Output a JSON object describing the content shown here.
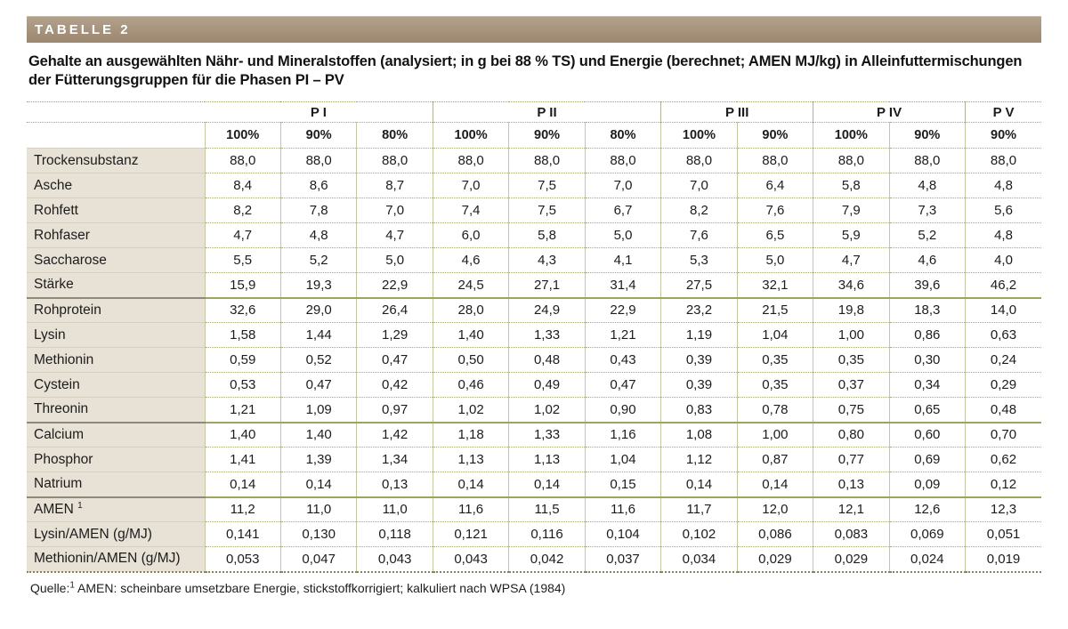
{
  "header": {
    "tag": "TABELLE 2"
  },
  "title": {
    "line1": "Gehalte an ausgewählten Nähr- und Mineralstoffen (analysiert; in g bei 88 % TS) und Energie (berechnet; AMEN MJ/kg) in Alleinfuttermischungen",
    "line2": "der Fütterungsgruppen für die Phasen PI – PV"
  },
  "colors": {
    "tag_bar_top": "#b2a18c",
    "tag_bar_bottom": "#9c8770",
    "label_cell_bg": "#e8e2d6",
    "grid_line": "#c3c8a0",
    "group_separator": "#9ea45f"
  },
  "table": {
    "groups": [
      {
        "label": "P I",
        "cols": [
          "100%",
          "90%",
          "80%"
        ]
      },
      {
        "label": "P II",
        "cols": [
          "100%",
          "90%",
          "80%"
        ]
      },
      {
        "label": "P III",
        "cols": [
          "100%",
          "90%"
        ]
      },
      {
        "label": "P IV",
        "cols": [
          "100%",
          "90%"
        ]
      },
      {
        "label": "P V",
        "cols": [
          "90%"
        ]
      }
    ],
    "rows": [
      {
        "label": "Trockensubstanz",
        "values": [
          "88,0",
          "88,0",
          "88,0",
          "88,0",
          "88,0",
          "88,0",
          "88,0",
          "88,0",
          "88,0",
          "88,0",
          "88,0"
        ]
      },
      {
        "label": "Asche",
        "values": [
          "8,4",
          "8,6",
          "8,7",
          "7,0",
          "7,5",
          "7,0",
          "7,0",
          "6,4",
          "5,8",
          "4,8",
          "4,8"
        ]
      },
      {
        "label": "Rohfett",
        "values": [
          "8,2",
          "7,8",
          "7,0",
          "7,4",
          "7,5",
          "6,7",
          "8,2",
          "7,6",
          "7,9",
          "7,3",
          "5,6"
        ]
      },
      {
        "label": "Rohfaser",
        "values": [
          "4,7",
          "4,8",
          "4,7",
          "6,0",
          "5,8",
          "5,0",
          "7,6",
          "6,5",
          "5,9",
          "5,2",
          "4,8"
        ]
      },
      {
        "label": "Saccharose",
        "values": [
          "5,5",
          "5,2",
          "5,0",
          "4,6",
          "4,3",
          "4,1",
          "5,3",
          "5,0",
          "4,7",
          "4,6",
          "4,0"
        ]
      },
      {
        "label": "Stärke",
        "values": [
          "15,9",
          "19,3",
          "22,9",
          "24,5",
          "27,1",
          "31,4",
          "27,5",
          "32,1",
          "34,6",
          "39,6",
          "46,2"
        ],
        "group_end": true
      },
      {
        "label": "Rohprotein",
        "values": [
          "32,6",
          "29,0",
          "26,4",
          "28,0",
          "24,9",
          "22,9",
          "23,2",
          "21,5",
          "19,8",
          "18,3",
          "14,0"
        ]
      },
      {
        "label": "Lysin",
        "values": [
          "1,58",
          "1,44",
          "1,29",
          "1,40",
          "1,33",
          "1,21",
          "1,19",
          "1,04",
          "1,00",
          "0,86",
          "0,63"
        ]
      },
      {
        "label": "Methionin",
        "values": [
          "0,59",
          "0,52",
          "0,47",
          "0,50",
          "0,48",
          "0,43",
          "0,39",
          "0,35",
          "0,35",
          "0,30",
          "0,24"
        ]
      },
      {
        "label": "Cystein",
        "values": [
          "0,53",
          "0,47",
          "0,42",
          "0,46",
          "0,49",
          "0,47",
          "0,39",
          "0,35",
          "0,37",
          "0,34",
          "0,29"
        ]
      },
      {
        "label": "Threonin",
        "values": [
          "1,21",
          "1,09",
          "0,97",
          "1,02",
          "1,02",
          "0,90",
          "0,83",
          "0,78",
          "0,75",
          "0,65",
          "0,48"
        ],
        "group_end": true
      },
      {
        "label": "Calcium",
        "values": [
          "1,40",
          "1,40",
          "1,42",
          "1,18",
          "1,33",
          "1,16",
          "1,08",
          "1,00",
          "0,80",
          "0,60",
          "0,70"
        ]
      },
      {
        "label": "Phosphor",
        "values": [
          "1,41",
          "1,39",
          "1,34",
          "1,13",
          "1,13",
          "1,04",
          "1,12",
          "0,87",
          "0,77",
          "0,69",
          "0,62"
        ]
      },
      {
        "label": "Natrium",
        "values": [
          "0,14",
          "0,14",
          "0,13",
          "0,14",
          "0,14",
          "0,15",
          "0,14",
          "0,14",
          "0,13",
          "0,09",
          "0,12"
        ],
        "group_end": true
      },
      {
        "label": "AMEN",
        "sup": "1",
        "values": [
          "11,2",
          "11,0",
          "11,0",
          "11,6",
          "11,5",
          "11,6",
          "11,7",
          "12,0",
          "12,1",
          "12,6",
          "12,3"
        ]
      },
      {
        "label": "Lysin/AMEN (g/MJ)",
        "values": [
          "0,141",
          "0,130",
          "0,118",
          "0,121",
          "0,116",
          "0,104",
          "0,102",
          "0,086",
          "0,083",
          "0,069",
          "0,051"
        ]
      },
      {
        "label": "Methionin/AMEN (g/MJ)",
        "values": [
          "0,053",
          "0,047",
          "0,043",
          "0,043",
          "0,042",
          "0,037",
          "0,034",
          "0,029",
          "0,029",
          "0,024",
          "0,019"
        ]
      }
    ]
  },
  "footer": {
    "label": "Quelle:",
    "sup": "1",
    "text": " AMEN: scheinbare umsetzbare Energie, stickstoffkorrigiert; kalkuliert nach WPSA (1984)"
  }
}
